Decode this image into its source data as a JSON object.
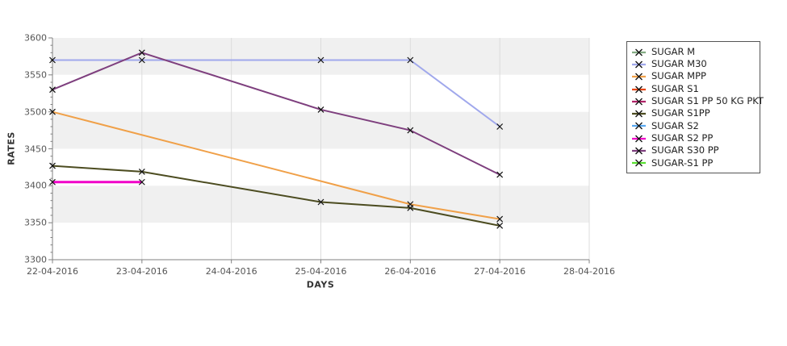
{
  "page": {
    "background": "#ffffff"
  },
  "axis_titles": {
    "y": "RATES",
    "x": "DAYS"
  },
  "chart_data": {
    "type": "line",
    "title": "",
    "xlabel": "DAYS",
    "ylabel": "RATES",
    "x_ticks": [
      "22-04-2016",
      "23-04-2016",
      "24-04-2016",
      "25-04-2016",
      "26-04-2016",
      "27-04-2016",
      "28-04-2016"
    ],
    "y_ticks": [
      3300,
      3350,
      3400,
      3450,
      3500,
      3550,
      3600
    ],
    "ylim": [
      3300,
      3600
    ],
    "y_minor_step": 10,
    "grid": true,
    "legend_position": "right",
    "marker": "x",
    "marker_color": "#111111",
    "band_colors": [
      "#f0f0f0",
      "#ffffff"
    ],
    "gridline_color": "#dcdcdc",
    "axis_color": "#808080",
    "tick_label_color": "#555555",
    "series": [
      {
        "name": "SUGAR M",
        "color": "#84ac84",
        "line_width": 2,
        "points": []
      },
      {
        "name": "SUGAR M30",
        "color": "#a0a8ec",
        "line_width": 2,
        "points": [
          [
            "22-04-2016",
            3570
          ],
          [
            "23-04-2016",
            3570
          ],
          [
            "25-04-2016",
            3570
          ],
          [
            "26-04-2016",
            3570
          ],
          [
            "27-04-2016",
            3480
          ]
        ]
      },
      {
        "name": "SUGAR MPP",
        "color": "#f0a048",
        "line_width": 2,
        "points": [
          [
            "22-04-2016",
            3500
          ],
          [
            "26-04-2016",
            3375
          ],
          [
            "27-04-2016",
            3355
          ]
        ]
      },
      {
        "name": "SUGAR S1",
        "color": "#e8440e",
        "line_width": 2,
        "points": []
      },
      {
        "name": "SUGAR S1 PP 50 KG PKT",
        "color": "#b02468",
        "line_width": 2,
        "points": []
      },
      {
        "name": "SUGAR S1PP",
        "color": "#4c4c20",
        "line_width": 2,
        "points": [
          [
            "22-04-2016",
            3427
          ],
          [
            "23-04-2016",
            3419
          ],
          [
            "25-04-2016",
            3378
          ],
          [
            "26-04-2016",
            3370
          ],
          [
            "27-04-2016",
            3346
          ]
        ]
      },
      {
        "name": "SUGAR S2",
        "color": "#58a8f0",
        "line_width": 2,
        "points": []
      },
      {
        "name": "SUGAR S2 PP",
        "color": "#f000c8",
        "line_width": 3,
        "points": [
          [
            "22-04-2016",
            3405
          ],
          [
            "23-04-2016",
            3405
          ]
        ]
      },
      {
        "name": "SUGAR S30 PP",
        "color": "#7e3f7e",
        "line_width": 2,
        "points": [
          [
            "22-04-2016",
            3530
          ],
          [
            "23-04-2016",
            3580
          ],
          [
            "25-04-2016",
            3503
          ],
          [
            "26-04-2016",
            3475
          ],
          [
            "27-04-2016",
            3415
          ]
        ]
      },
      {
        "name": "SUGAR-S1 PP",
        "color": "#58e030",
        "line_width": 2,
        "points": []
      }
    ]
  }
}
